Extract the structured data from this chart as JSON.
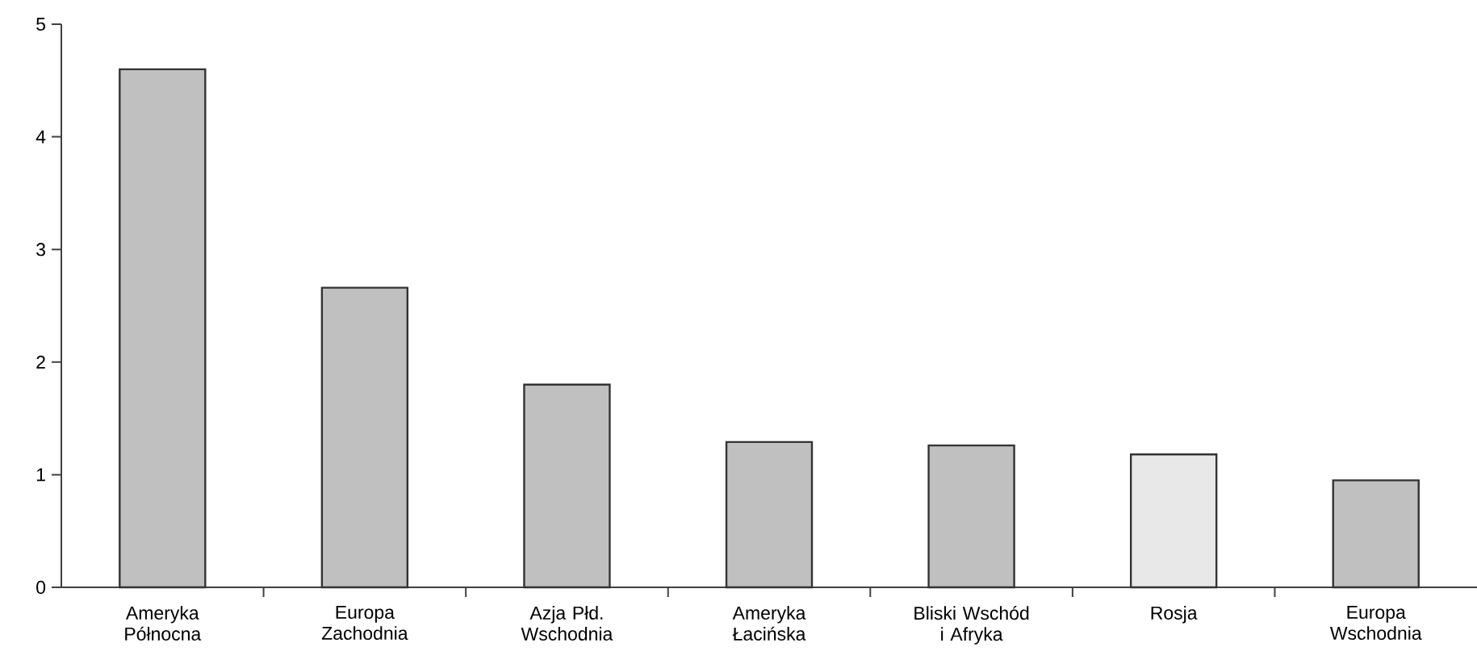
{
  "chart_data": {
    "type": "bar",
    "categories": [
      "Ameryka Północna",
      "Europa Zachodnia",
      "Azja Płd. Wschodnia",
      "Ameryka Łacińska",
      "Bliski Wschód i Afryka",
      "Rosja",
      "Europa Wschodnia"
    ],
    "values": [
      4.6,
      2.66,
      1.8,
      1.29,
      1.26,
      1.18,
      0.95
    ],
    "colors": [
      "#c0c0c0",
      "#c0c0c0",
      "#c0c0c0",
      "#c0c0c0",
      "#c0c0c0",
      "#e8e8e8",
      "#c0c0c0"
    ],
    "ylim": [
      0,
      5
    ],
    "yticks": [
      0,
      1,
      2,
      3,
      4,
      5
    ],
    "grid": false
  }
}
